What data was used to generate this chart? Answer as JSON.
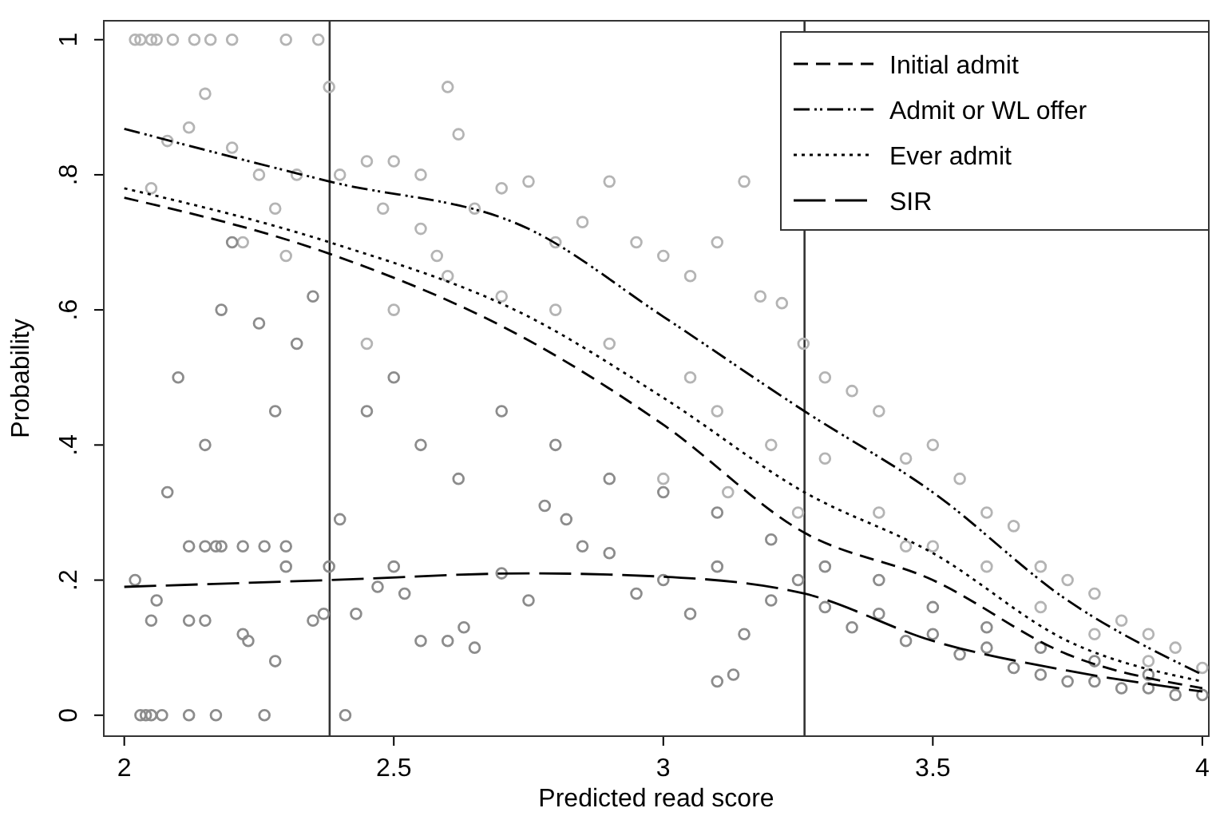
{
  "chart_data": {
    "type": "scatter",
    "xlabel": "Predicted read score",
    "ylabel": "Probability",
    "xlim": [
      1.962,
      4.012
    ],
    "ylim": [
      -0.031,
      1.028
    ],
    "xticks": [
      2,
      2.5,
      3,
      3.5,
      4
    ],
    "yticks": [
      0,
      {
        "value": 0.2,
        "label": ".2"
      },
      {
        "value": 0.4,
        "label": ".4"
      },
      {
        "value": 0.6,
        "label": ".6"
      },
      {
        "value": 0.8,
        "label": ".8"
      },
      1
    ],
    "grid": false,
    "legend": "top right",
    "ref_lines": [
      {
        "axis": "x",
        "value": 2.381,
        "color": "#333333"
      },
      {
        "axis": "x",
        "value": 3.262,
        "color": "#333333"
      }
    ],
    "series": [
      {
        "marker": "circle",
        "color": "#b4b4b4",
        "x": [
          2.02,
          2.03,
          2.05,
          2.06,
          2.09,
          2.13,
          2.16,
          2.2,
          2.3,
          2.36,
          2.15,
          2.12,
          2.08,
          2.2,
          2.25,
          2.32,
          2.05,
          2.28,
          2.22,
          2.3,
          2.38,
          2.4,
          2.45,
          2.5,
          2.55,
          2.6,
          2.62,
          2.48,
          2.55,
          2.65,
          2.58,
          2.7,
          2.75,
          2.8,
          2.85,
          2.9,
          2.95,
          3.0,
          3.05,
          3.1,
          3.15,
          3.18,
          3.22,
          3.26,
          3.3,
          3.35,
          3.4,
          3.45,
          3.5,
          3.55,
          3.6,
          3.65,
          3.7,
          3.75,
          3.8,
          3.85,
          3.9,
          3.95,
          4.0,
          3.05,
          3.1,
          3.2,
          3.3,
          3.4,
          3.5,
          3.6,
          3.7,
          3.8,
          3.9,
          2.9,
          2.8,
          2.7,
          2.6,
          2.5,
          2.45,
          3.0,
          3.12,
          3.25,
          3.45
        ],
        "values": [
          1,
          1,
          1,
          1,
          1,
          1,
          1,
          1,
          1,
          1,
          0.92,
          0.87,
          0.85,
          0.84,
          0.8,
          0.8,
          0.78,
          0.75,
          0.7,
          0.68,
          0.93,
          0.8,
          0.82,
          0.82,
          0.8,
          0.93,
          0.86,
          0.75,
          0.72,
          0.75,
          0.68,
          0.78,
          0.79,
          0.7,
          0.73,
          0.79,
          0.7,
          0.68,
          0.65,
          0.7,
          0.79,
          0.62,
          0.61,
          0.55,
          0.5,
          0.48,
          0.45,
          0.38,
          0.4,
          0.35,
          0.3,
          0.28,
          0.22,
          0.2,
          0.18,
          0.14,
          0.12,
          0.1,
          0.07,
          0.5,
          0.45,
          0.4,
          0.38,
          0.3,
          0.25,
          0.22,
          0.16,
          0.12,
          0.08,
          0.55,
          0.6,
          0.62,
          0.65,
          0.6,
          0.55,
          0.35,
          0.33,
          0.3,
          0.25
        ]
      },
      {
        "marker": "circle",
        "color": "#8c8c8c",
        "x": [
          2.03,
          2.04,
          2.05,
          2.07,
          2.12,
          2.17,
          2.26,
          2.41,
          2.12,
          2.15,
          2.17,
          2.18,
          2.22,
          2.26,
          2.3,
          2.06,
          2.12,
          2.15,
          2.22,
          2.23,
          2.28,
          2.3,
          2.35,
          2.37,
          2.38,
          2.4,
          2.43,
          2.47,
          2.5,
          2.52,
          2.55,
          2.6,
          2.63,
          2.65,
          2.7,
          2.75,
          2.78,
          2.82,
          2.85,
          2.9,
          2.95,
          3.0,
          3.05,
          3.1,
          3.15,
          3.2,
          3.25,
          3.3,
          3.35,
          3.4,
          3.45,
          3.5,
          3.55,
          3.6,
          3.65,
          3.7,
          3.75,
          3.8,
          3.85,
          3.9,
          3.95,
          4.0,
          2.02,
          2.05,
          2.08,
          2.1,
          2.15,
          2.18,
          2.2,
          2.25,
          2.28,
          2.32,
          2.35,
          2.45,
          2.5,
          2.55,
          2.62,
          2.7,
          2.8,
          2.9,
          3.0,
          3.1,
          3.2,
          3.3,
          3.4,
          3.5,
          3.6,
          3.7,
          3.8,
          3.9,
          3.1,
          3.13
        ],
        "values": [
          0,
          0,
          0,
          0,
          0,
          0,
          0,
          0,
          0.25,
          0.25,
          0.25,
          0.25,
          0.25,
          0.25,
          0.25,
          0.17,
          0.14,
          0.14,
          0.12,
          0.11,
          0.08,
          0.22,
          0.14,
          0.15,
          0.22,
          0.29,
          0.15,
          0.19,
          0.22,
          0.18,
          0.11,
          0.11,
          0.13,
          0.1,
          0.21,
          0.17,
          0.31,
          0.29,
          0.25,
          0.24,
          0.18,
          0.2,
          0.15,
          0.22,
          0.12,
          0.17,
          0.2,
          0.16,
          0.13,
          0.15,
          0.11,
          0.12,
          0.09,
          0.1,
          0.07,
          0.06,
          0.05,
          0.05,
          0.04,
          0.04,
          0.03,
          0.03,
          0.2,
          0.14,
          0.33,
          0.5,
          0.4,
          0.6,
          0.7,
          0.58,
          0.45,
          0.55,
          0.62,
          0.45,
          0.5,
          0.4,
          0.35,
          0.45,
          0.4,
          0.35,
          0.33,
          0.3,
          0.26,
          0.22,
          0.2,
          0.16,
          0.13,
          0.1,
          0.08,
          0.06,
          0.05,
          0.06
        ]
      },
      {
        "type": "line",
        "name": "Initial admit",
        "color": "#000000",
        "line_style": "dashed",
        "x": [
          2,
          2.381,
          2.75,
          3,
          3.262,
          3.5,
          3.75,
          4
        ],
        "values": [
          0.766,
          0.683,
          0.555,
          0.43,
          0.27,
          0.2,
          0.09,
          0.04
        ]
      },
      {
        "type": "line",
        "name": "Admit or WL offer",
        "color": "#000000",
        "line_style": "dashdotdot",
        "x": [
          2,
          2.381,
          2.75,
          3,
          3.262,
          3.5,
          3.75,
          4
        ],
        "values": [
          0.868,
          0.79,
          0.72,
          0.59,
          0.45,
          0.33,
          0.17,
          0.06
        ]
      },
      {
        "type": "line",
        "name": "Ever admit",
        "color": "#000000",
        "line_style": "dotted",
        "x": [
          2,
          2.381,
          2.75,
          3,
          3.262,
          3.5,
          3.75,
          4
        ],
        "values": [
          0.78,
          0.7,
          0.59,
          0.47,
          0.33,
          0.24,
          0.11,
          0.05
        ]
      },
      {
        "type": "line",
        "name": "SIR",
        "color": "#000000",
        "line_style": "longdash",
        "x": [
          2,
          2.381,
          2.75,
          3,
          3.262,
          3.5,
          3.75,
          4
        ],
        "values": [
          0.19,
          0.2,
          0.21,
          0.205,
          0.18,
          0.11,
          0.066,
          0.035
        ]
      }
    ]
  }
}
